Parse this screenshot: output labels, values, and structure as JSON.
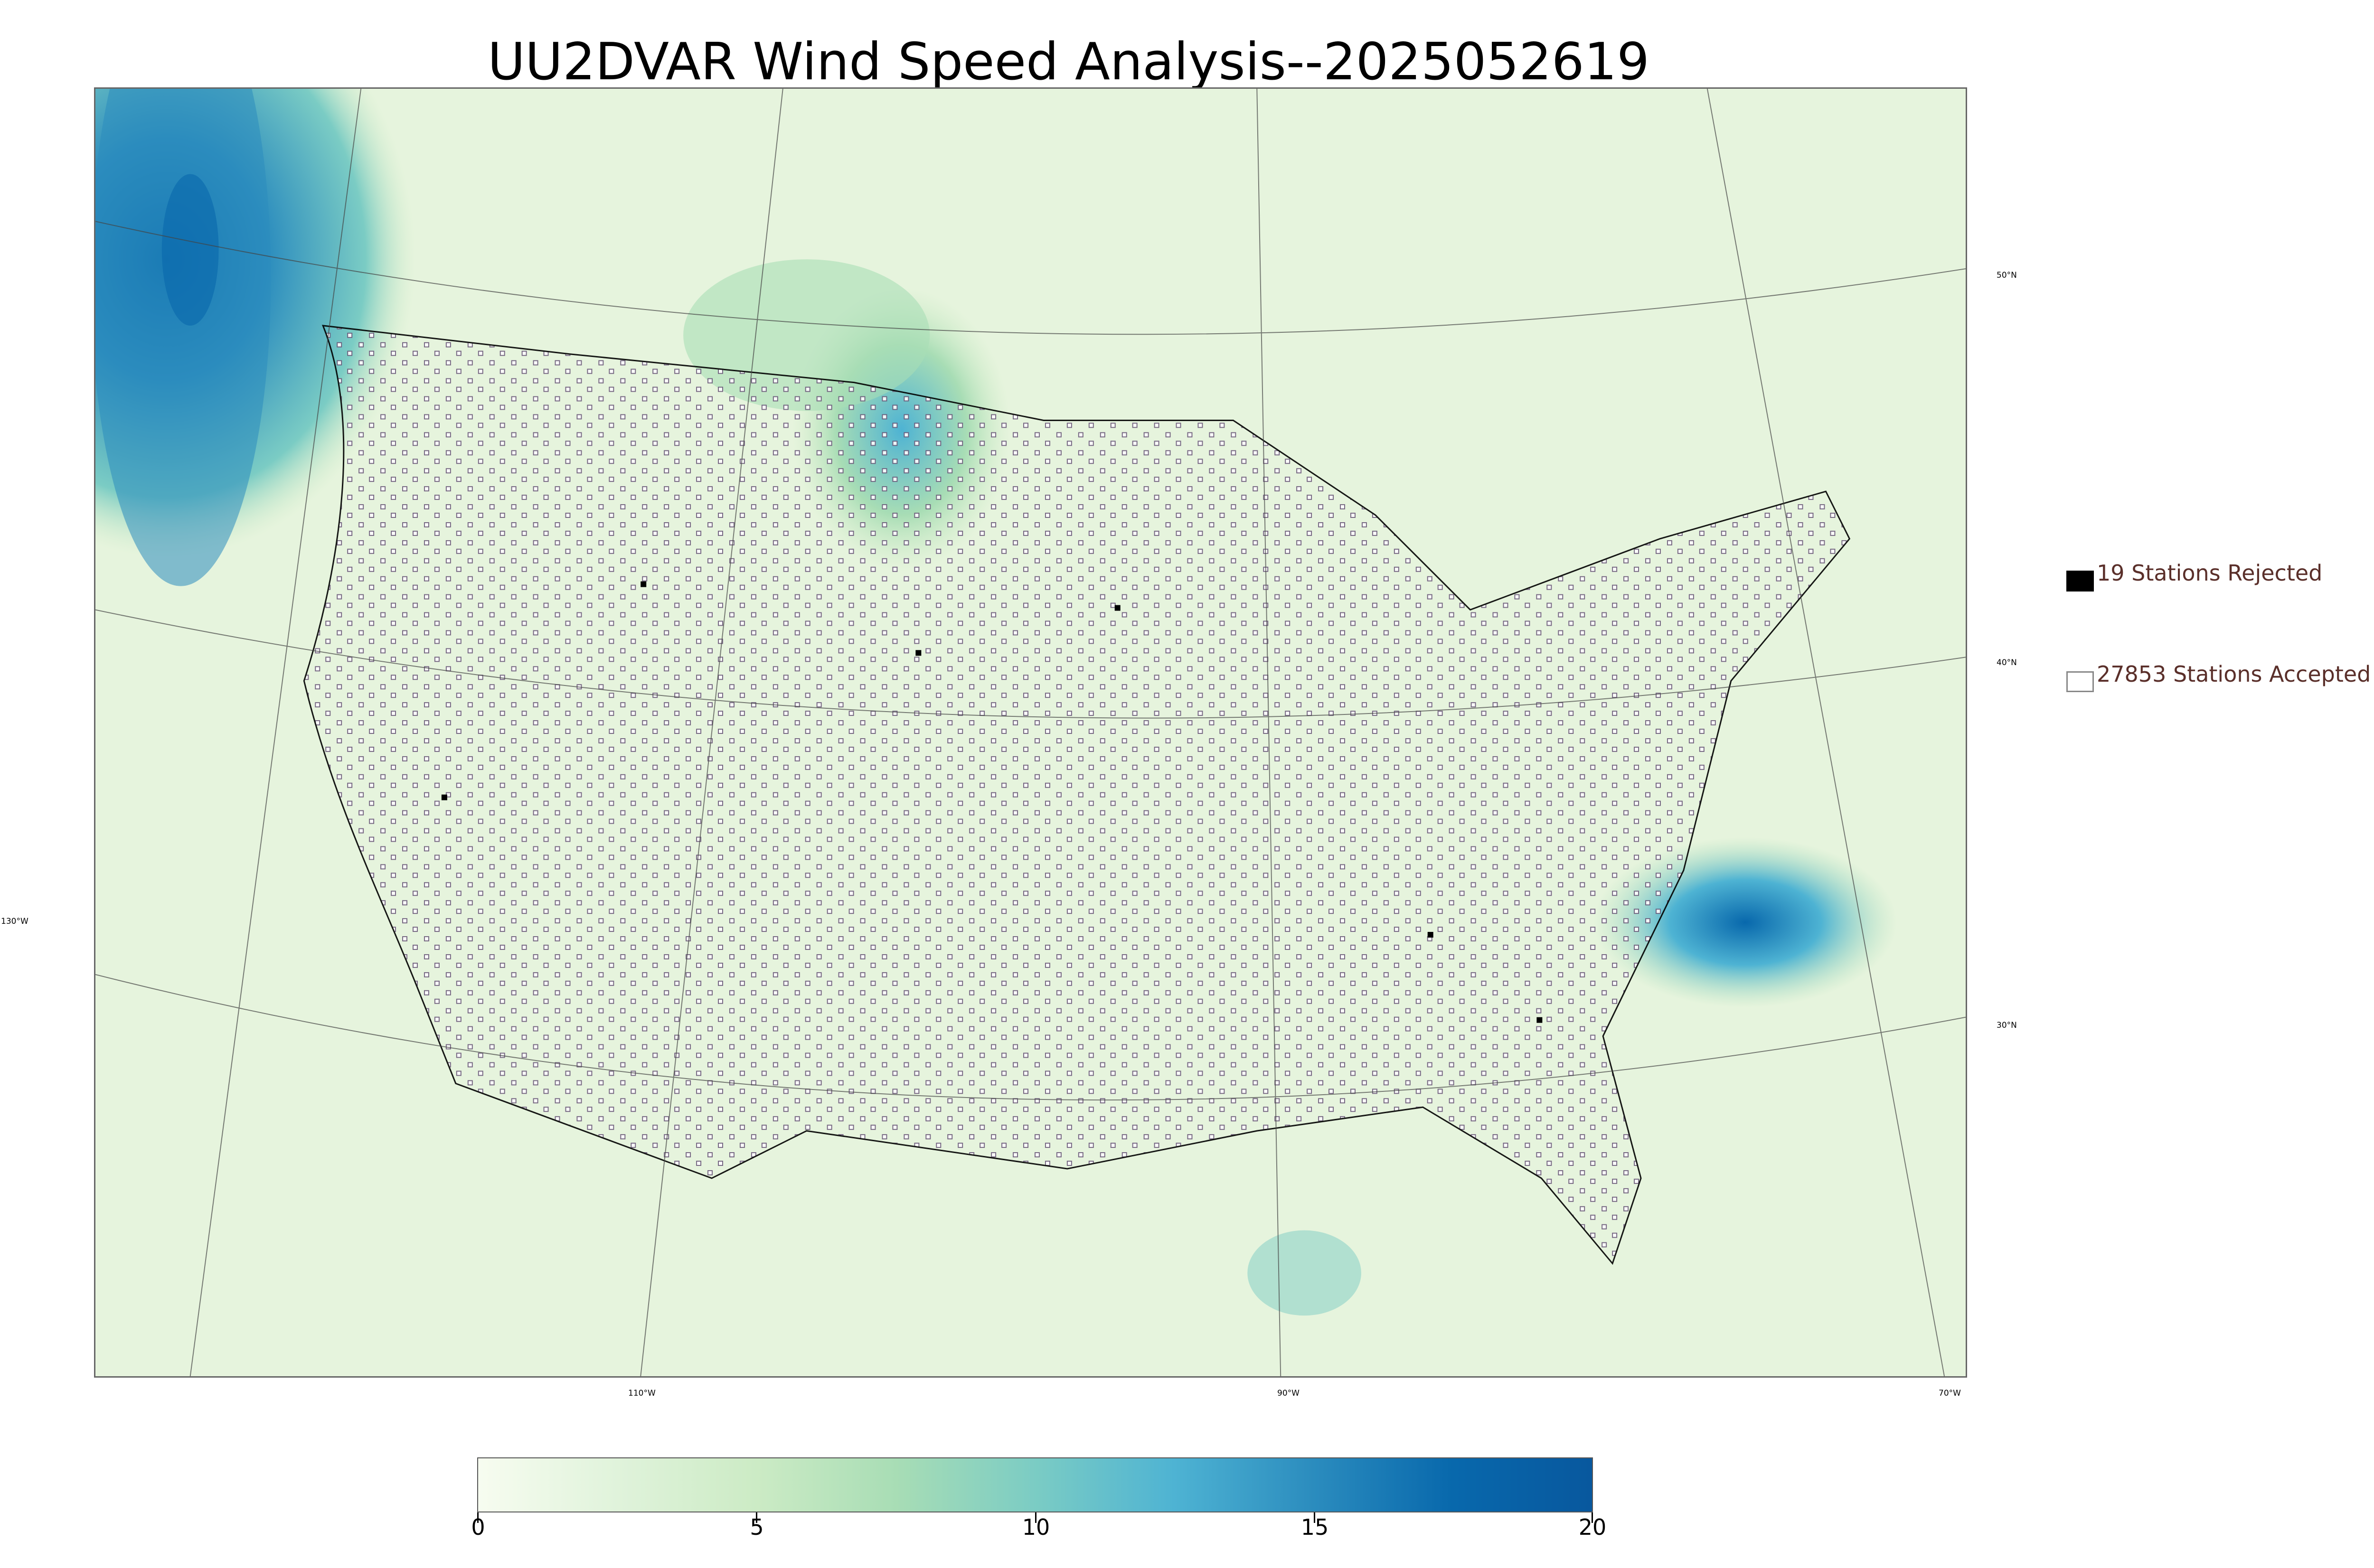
{
  "title": "UU2DVAR Wind Speed Analysis--2025052619",
  "map": {
    "lon_labels": [
      "130°W",
      "110°W",
      "90°W",
      "70°W"
    ],
    "lat_labels": [
      "50°N",
      "40°N",
      "30°N"
    ],
    "background_color": "#e9f5e0",
    "station_accepted_color": "#ffffff",
    "station_rejected_color": "#000000"
  },
  "legend": {
    "rejected_label": "19 Stations Rejected",
    "accepted_label": "27853 Stations Accepted",
    "text_color": "#5a2f2a"
  },
  "colorbar": {
    "ticks": [
      "0",
      "5",
      "10",
      "15",
      "20"
    ],
    "min": 0,
    "max": 20,
    "colors": [
      "#f7fcf0",
      "#e0f3db",
      "#ccebc5",
      "#a8ddb5",
      "#7bccc4",
      "#4eb3d3",
      "#2b8cbe",
      "#0868ac",
      "#08589e"
    ]
  }
}
